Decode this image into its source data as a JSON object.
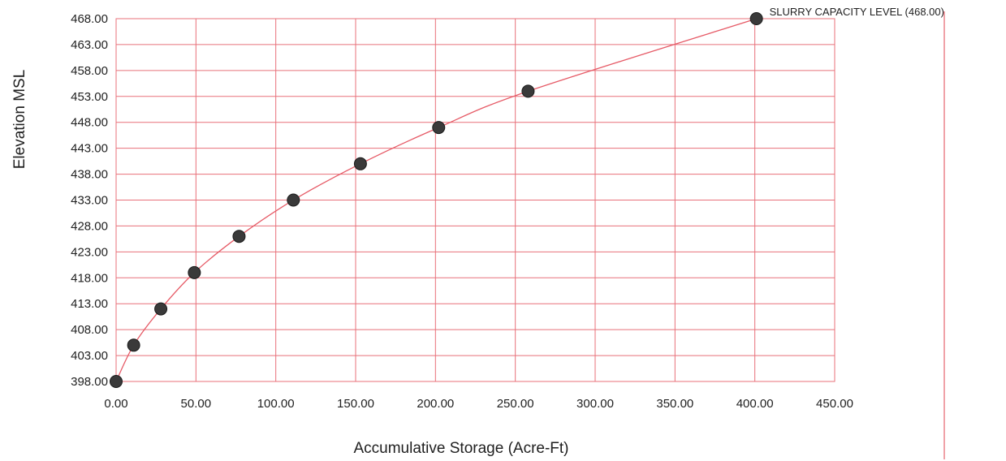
{
  "chart_data": {
    "type": "scatter",
    "xlabel": "Accumulative Storage (Acre-Ft)",
    "ylabel": "Elevation MSL",
    "xlim": [
      0,
      450
    ],
    "ylim": [
      398,
      468
    ],
    "x_ticks": [
      0,
      50,
      100,
      150,
      200,
      250,
      300,
      350,
      400,
      450
    ],
    "x_tick_labels": [
      "0.00",
      "50.00",
      "100.00",
      "150.00",
      "200.00",
      "250.00",
      "300.00",
      "350.00",
      "400.00",
      "450.00"
    ],
    "y_ticks": [
      398,
      403,
      408,
      413,
      418,
      423,
      428,
      433,
      438,
      443,
      448,
      453,
      458,
      463,
      468
    ],
    "y_tick_labels": [
      "398.00",
      "403.00",
      "408.00",
      "413.00",
      "418.00",
      "423.00",
      "428.00",
      "433.00",
      "438.00",
      "443.00",
      "448.00",
      "453.00",
      "458.00",
      "463.00",
      "468.00"
    ],
    "grid": true,
    "colors": {
      "grid": "#e8707a",
      "curve": "#e65a66",
      "marker": "#3a3a3a",
      "reference_line": "#e8707a"
    },
    "series": [
      {
        "x": [
          0,
          11,
          28,
          49,
          77,
          111,
          153,
          202,
          258,
          401
        ],
        "y": [
          398,
          405,
          412,
          419,
          426,
          433,
          440,
          447,
          454,
          468
        ]
      }
    ],
    "annotations": [
      {
        "text": "SLURRY CAPACITY LEVEL (468.00)",
        "x": 401,
        "y": 468
      }
    ]
  }
}
